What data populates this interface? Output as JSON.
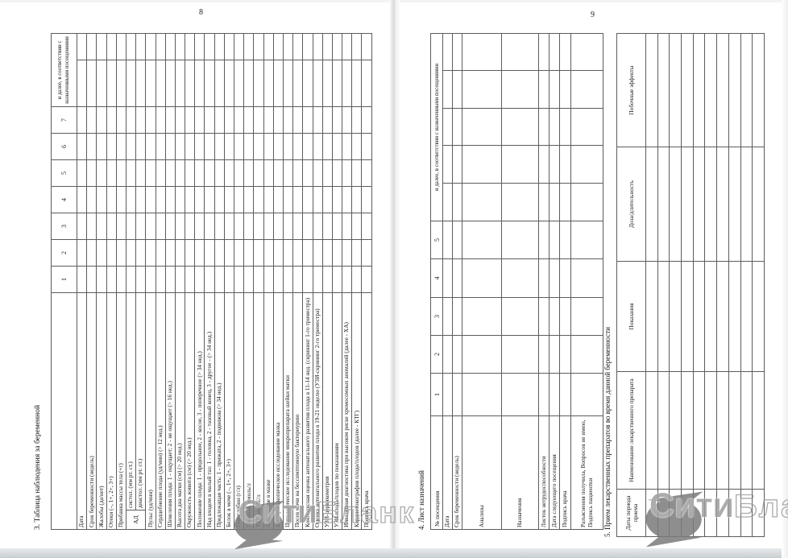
{
  "watermark": {
    "solid": "Сити",
    "outline": "Бланк"
  },
  "page_left": {
    "page_number": "8",
    "observation_table": {
      "title": "3. Таблица наблюдения за беременной",
      "corner_header": "№ посещения",
      "visit_numbers": [
        "1",
        "2",
        "3",
        "4",
        "5",
        "6",
        "7"
      ],
      "further_header": "и далее, в соответствии с назначенными посещениями",
      "bp_group_label": "АД",
      "rows": [
        {
          "label": "Дата"
        },
        {
          "label": "Срок беременности (недель)"
        },
        {
          "label": "Жалобы (да/нет)"
        },
        {
          "label": "Отеки (–, 1+, 2+, 3+)"
        },
        {
          "label": "Прибавка массы тела (+г)"
        },
        {
          "label": "систол. (мм рт. ст.)",
          "group": "АД",
          "group_start": true
        },
        {
          "label": "диастол. (мм рт. ст.)",
          "group": "АД"
        },
        {
          "label": "Пульс (уд/мин)"
        },
        {
          "label": "Сердцебиение плода (уд/мин) (> 12 нед.)"
        },
        {
          "label": "Шевеления плода: 1 - ощущает; 2 - не ощущает (> 16 нед.)"
        },
        {
          "label": "Высота дна матки (см) (> 20 нед.)"
        },
        {
          "label": "Окружность живота (см) (> 20 нед.)"
        },
        {
          "label": "Положение плода: 1 - продольное, 2 - косое, 3 - поперечное (> 34 нед.)"
        },
        {
          "label": "Над входом в малый таз: 1 - головка, 2 - тазовый конец, 3 - другое - (> 34 нед.)"
        },
        {
          "label": "Предлежащая часть: 1 - прижата, 2 - подвижна (> 34 нед.)"
        },
        {
          "label": "Белок в моче (–, 1+, 2+, 3+)"
        },
        {
          "label": "Гемоглобин (г/л)"
        },
        {
          "label": "Глюкоза, ммоль/л"
        },
        {
          "label": "ТТГ, мкМЕ/л"
        },
        {
          "label": "S.agalactiae в мазке"
        },
        {
          "label": "Бактериоскопическое исследование мазка"
        },
        {
          "label": "Цитологическое исследование микропрепарата шейки матки"
        },
        {
          "label": "Посев мочи на бессимптомную бактериурию"
        },
        {
          "label": "Комплексная оценка антенатального развития плода в 11-14 нед. (скрининг 1-го триместра)"
        },
        {
          "label": "Оценка антенатального развития плода в 19-21 неделю (УЗИ-скрининг 2-го триместра)"
        },
        {
          "label": "УЗИ-цервикометрия"
        },
        {
          "label": "УЗИ плода/плодов по показаниям"
        },
        {
          "label": "Инвазивная диагностика при высоком риске хромосомных аномалий (далее - ХА)"
        },
        {
          "label": "Кардиотокография плода/плодов (далее - КТГ)"
        },
        {
          "label": "Подпись врача"
        }
      ]
    }
  },
  "page_right": {
    "page_number": "9",
    "prescription_table": {
      "title": "4. Лист назначений",
      "corner_header": "№ посещения",
      "visit_numbers": [
        "1",
        "2",
        "3",
        "4",
        "5"
      ],
      "further_header": "и далее, в соответствии с назначенными посещениями",
      "rows": [
        {
          "label": "Дата"
        },
        {
          "label": "Срок беременности (недель)"
        },
        {
          "label": "Анализы"
        },
        {
          "label": "Назначения"
        },
        {
          "label": "Листок нетрудоспособности"
        },
        {
          "label": "Дата следующего посещения"
        },
        {
          "label": "Подпись врача"
        },
        {
          "label": "Разъяснения получила, Вопросов не имею, Подпись пациентки"
        }
      ]
    },
    "medication_table": {
      "title": "5. Прием лекарственных препаратов во время данной беременности",
      "columns": [
        "Даты периода приема",
        "Наименование лекарственного препарата",
        "Показания",
        "Доза/длительность",
        "Побочные эффекты"
      ],
      "empty_rows": 10
    }
  }
}
